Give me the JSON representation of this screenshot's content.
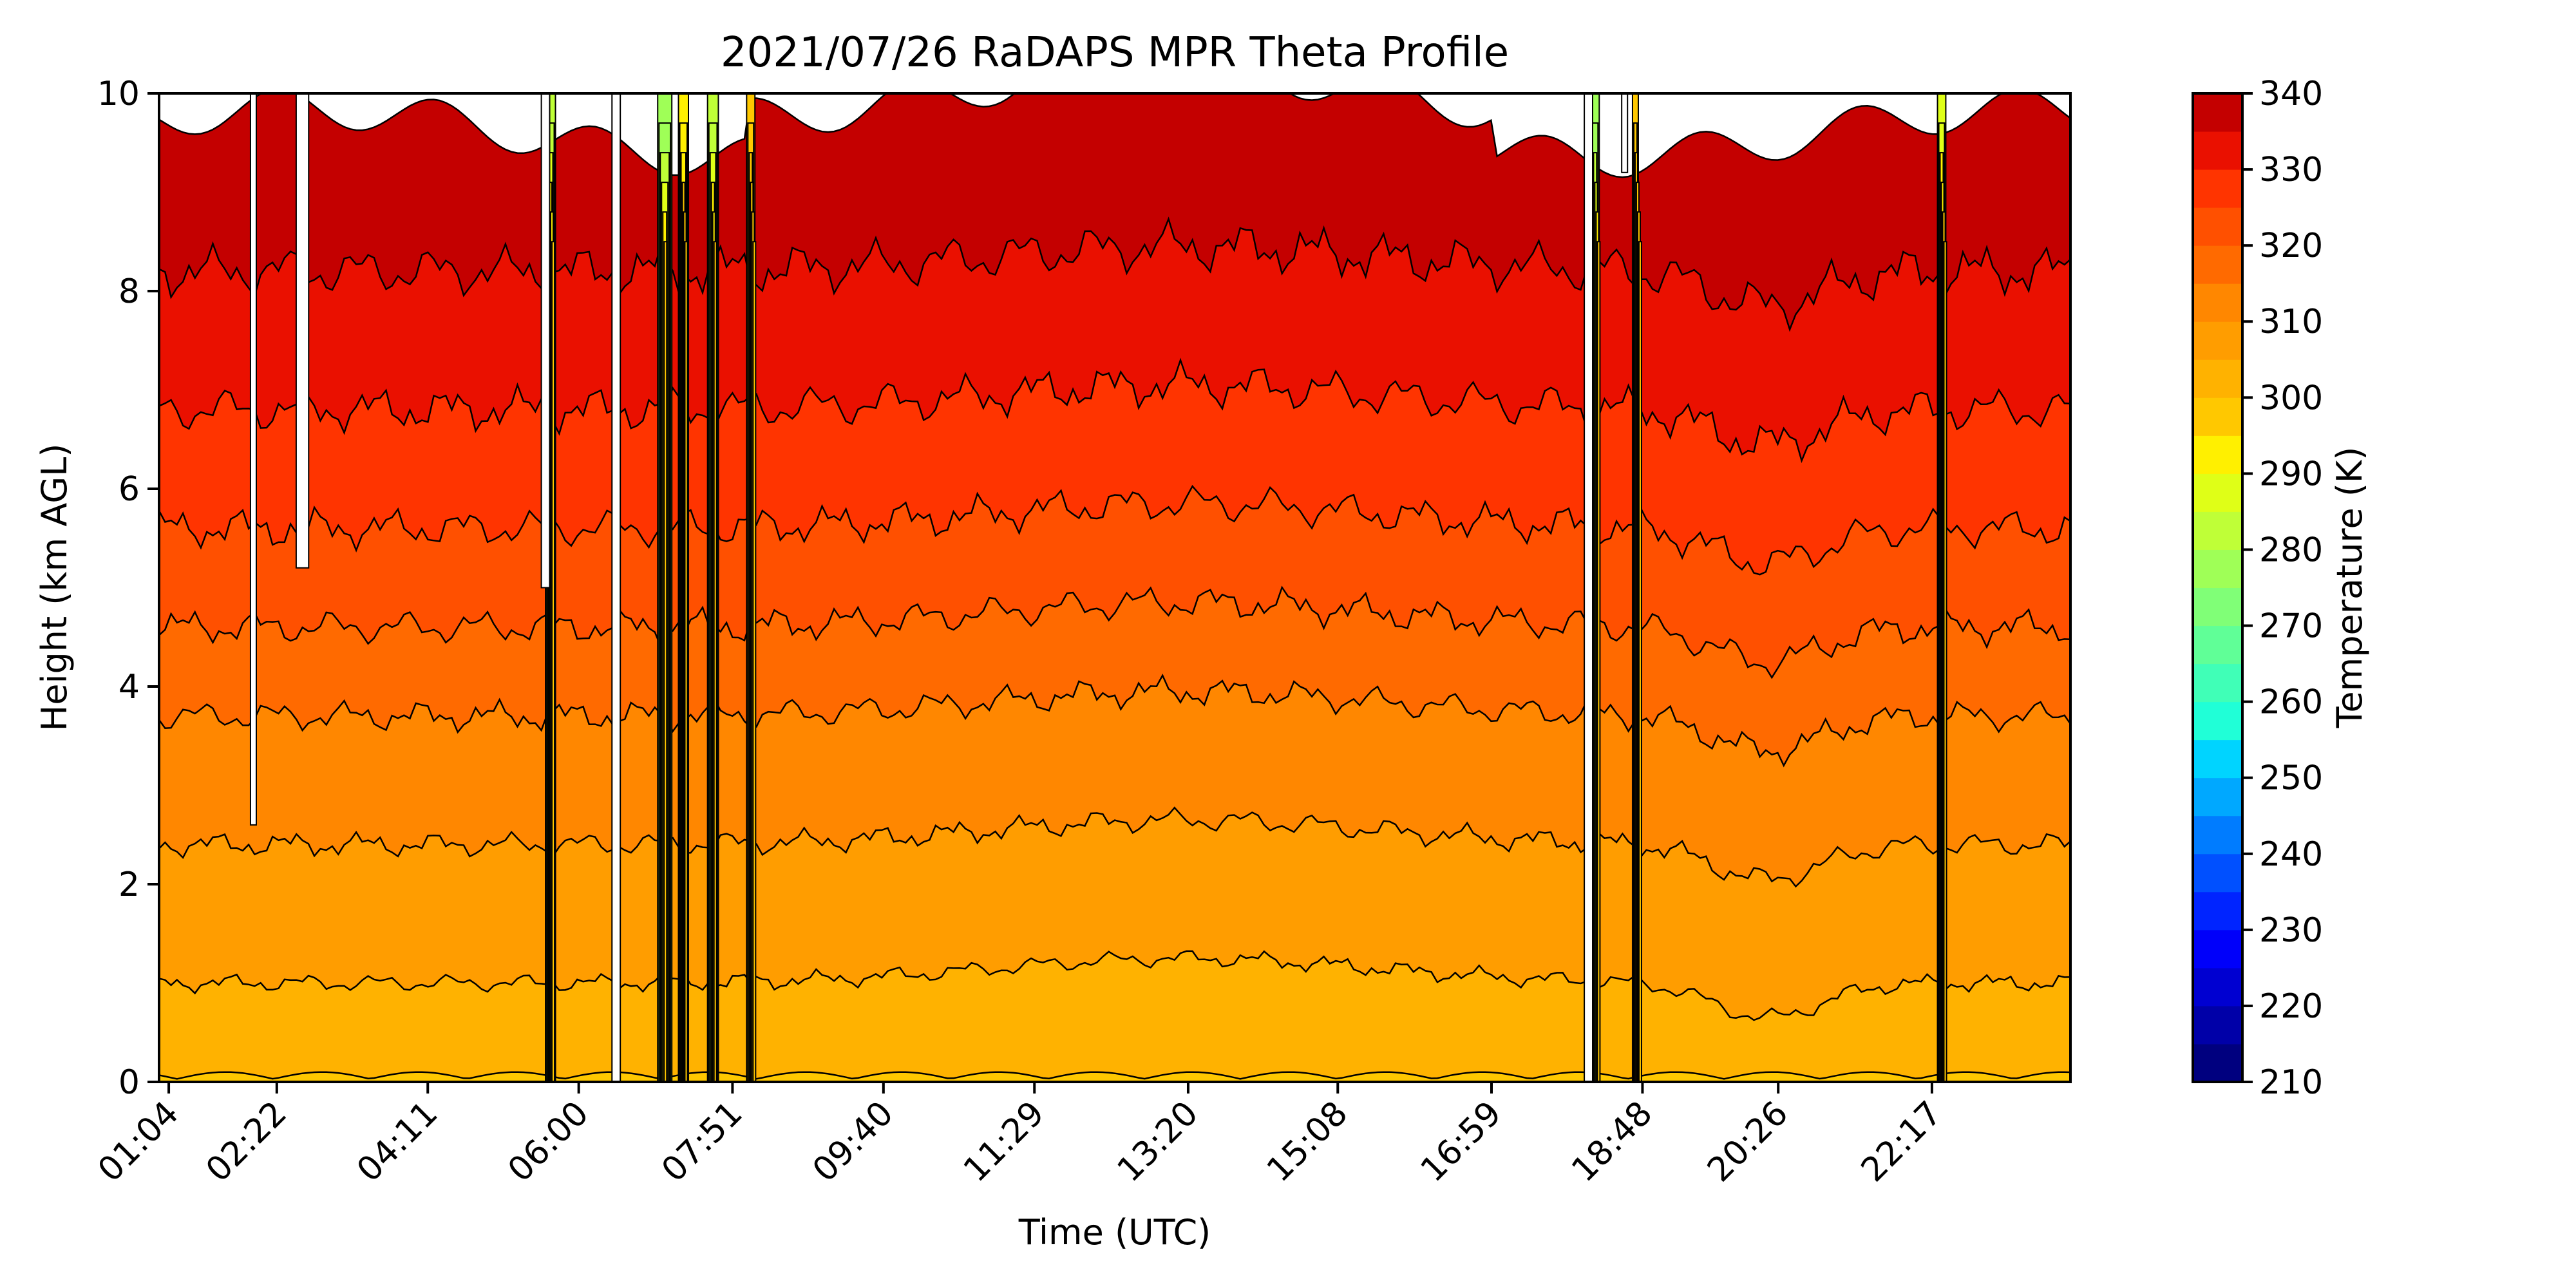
{
  "chart_data": {
    "type": "contourf",
    "title": "2021/07/26 RaDAPS MPR Theta Profile",
    "xlabel": "Time (UTC)",
    "ylabel": "Height (km AGL)",
    "x_tick_labels": [
      "01:04",
      "02:22",
      "04:11",
      "06:00",
      "07:51",
      "09:40",
      "11:29",
      "13:20",
      "15:08",
      "16:59",
      "18:48",
      "20:26",
      "22:17"
    ],
    "x_tick_hours": [
      1.0667,
      2.3667,
      4.1833,
      6.0,
      7.85,
      9.6667,
      11.4833,
      13.3333,
      15.1333,
      16.9833,
      18.8,
      20.4333,
      22.2833
    ],
    "x_range_hours": [
      0.95,
      23.95
    ],
    "ylim": [
      0,
      10
    ],
    "y_ticks": [
      0,
      2,
      4,
      6,
      8,
      10
    ],
    "colorbar": {
      "label": "Temperature (K)",
      "ticks": [
        210,
        220,
        230,
        240,
        250,
        260,
        270,
        280,
        290,
        300,
        310,
        320,
        330,
        340
      ],
      "levels": [
        210,
        215,
        220,
        225,
        230,
        235,
        240,
        245,
        250,
        255,
        260,
        265,
        270,
        275,
        280,
        285,
        290,
        295,
        300,
        305,
        310,
        315,
        320,
        325,
        330,
        335,
        340
      ],
      "colors": [
        "#00007f",
        "#0000a8",
        "#0000d1",
        "#0000fa",
        "#0024ff",
        "#0050ff",
        "#007cff",
        "#00a8ff",
        "#00d4ff",
        "#20ffd7",
        "#40ffb7",
        "#60ff97",
        "#80ff77",
        "#9fff57",
        "#bfff37",
        "#dfff17",
        "#fff000",
        "#ffc800",
        "#ffb200",
        "#ff9d00",
        "#ff8700",
        "#ff6a00",
        "#ff5000",
        "#ff3400",
        "#ea1000",
        "#c40000",
        "#850000"
      ]
    },
    "profile_contours": [
      {
        "theta_K": 300,
        "height_km": 0.1
      },
      {
        "theta_K": 305,
        "height_km": 1.0
      },
      {
        "theta_K": 310,
        "height_km": 2.4
      },
      {
        "theta_K": 315,
        "height_km": 3.7
      },
      {
        "theta_K": 320,
        "height_km": 4.6
      },
      {
        "theta_K": 325,
        "height_km": 5.6
      },
      {
        "theta_K": 330,
        "height_km": 6.8
      },
      {
        "theta_K": 335,
        "height_km": 8.2
      },
      {
        "theta_K": 340,
        "height_km": 9.6
      }
    ],
    "data_gaps_hours": [
      {
        "start": 2.05,
        "end": 2.12,
        "top_km": 2.6
      },
      {
        "start": 2.6,
        "end": 2.75,
        "top_km": 5.2
      },
      {
        "start": 5.55,
        "end": 5.65,
        "top_km": 5.0
      },
      {
        "start": 6.4,
        "end": 6.5,
        "top_km": 10
      },
      {
        "start": 18.1,
        "end": 18.2,
        "top_km": 10
      },
      {
        "start": 18.55,
        "end": 18.62,
        "top_km": 9.2
      }
    ],
    "anomaly_columns_hours": [
      {
        "start": 5.6,
        "end": 5.72,
        "min_K": 280
      },
      {
        "start": 6.95,
        "end": 7.12,
        "min_K": 275
      },
      {
        "start": 7.2,
        "end": 7.32,
        "min_K": 290
      },
      {
        "start": 7.55,
        "end": 7.68,
        "min_K": 280
      },
      {
        "start": 8.02,
        "end": 8.12,
        "min_K": 295
      },
      {
        "start": 18.18,
        "end": 18.28,
        "min_K": 275
      },
      {
        "start": 18.68,
        "end": 18.75,
        "min_K": 295
      },
      {
        "start": 22.35,
        "end": 22.45,
        "min_K": 285
      }
    ],
    "grid": false,
    "legend": "colorbar right"
  }
}
